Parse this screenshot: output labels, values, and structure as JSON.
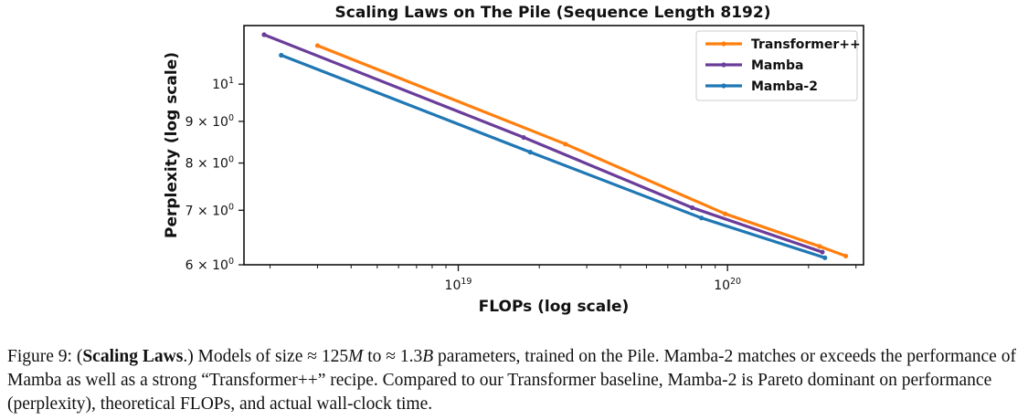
{
  "chart_data": {
    "type": "line",
    "title": "Scaling Laws on The Pile (Sequence Length 8192)",
    "xlabel": "FLOPs (log scale)",
    "ylabel": "Perplexity (log scale)",
    "xscale": "log",
    "yscale": "log",
    "xlim": [
      1.6e+18,
      3.2e+20
    ],
    "ylim": [
      6.0,
      11.8
    ],
    "xticks": [
      {
        "value": 1e+19,
        "label": "10",
        "sup": "19"
      },
      {
        "value": 1e+20,
        "label": "10",
        "sup": "20"
      }
    ],
    "yticks": [
      {
        "value": 10,
        "label": "10",
        "sup": "1"
      },
      {
        "value": 9,
        "label": "9 × 10",
        "sup": "0"
      },
      {
        "value": 8,
        "label": "8 × 10",
        "sup": "0"
      },
      {
        "value": 7,
        "label": "7 × 10",
        "sup": "0"
      },
      {
        "value": 6,
        "label": "6 × 10",
        "sup": "0"
      }
    ],
    "grid": false,
    "legend_position": "top-right",
    "series": [
      {
        "name": "Transformer++",
        "color": "#ff7f0e",
        "x": [
          3e+18,
          2.5e+19,
          9.8e+19,
          2.2e+20,
          2.75e+20
        ],
        "y": [
          11.15,
          8.44,
          6.93,
          6.32,
          6.15
        ]
      },
      {
        "name": "Mamba",
        "color": "#6a3d9a",
        "x": [
          1.9e+18,
          1.75e+19,
          7.4e+19,
          2.25e+20
        ],
        "y": [
          11.5,
          8.6,
          7.05,
          6.22
        ]
      },
      {
        "name": "Mamba-2",
        "color": "#1f77b4",
        "x": [
          2.2e+18,
          1.85e+19,
          8e+19,
          2.3e+20
        ],
        "y": [
          10.85,
          8.25,
          6.85,
          6.12
        ]
      }
    ]
  },
  "caption": {
    "prefix": "Figure 9: (",
    "bold": "Scaling Laws",
    "after_bold": ".) Models of size ≈ 125",
    "m1": "M",
    "mid": " to ≈ 1.3",
    "m2": "B",
    "rest": " parameters, trained on the Pile. Mamba-2 matches or exceeds the performance of Mamba as well as a strong “Transformer++” recipe. Compared to our Transformer baseline, Mamba-2 is Pareto dominant on performance (perplexity), theoretical FLOPs, and actual wall-clock time."
  }
}
